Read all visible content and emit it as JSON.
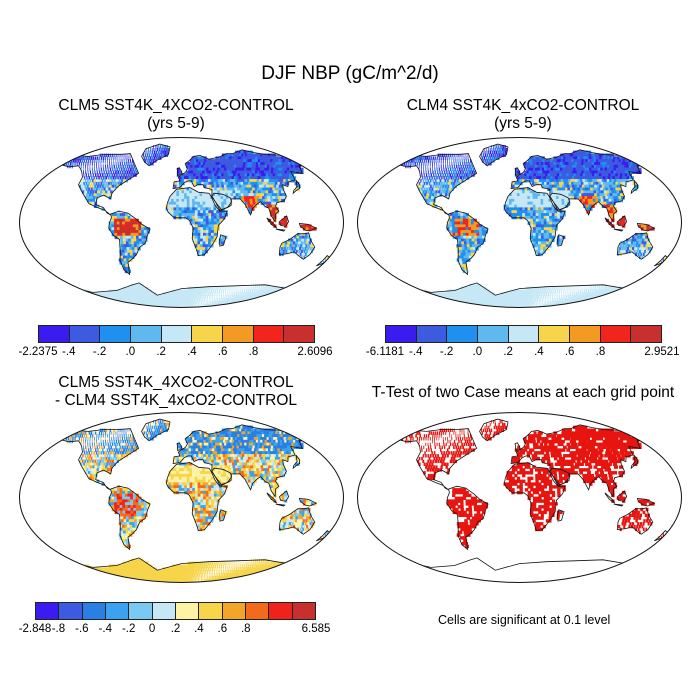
{
  "figure_title": "DJF NBP (gC/m^2/d)",
  "panels": [
    {
      "id": "p1",
      "title_line1": "CLM5 SST4K_4XCO2-CONTROL",
      "title_line2": "(yrs 5-9)"
    },
    {
      "id": "p2",
      "title_line1": "CLM4 SST4K_4xCO2-CONTROL",
      "title_line2": "(yrs 5-9)"
    },
    {
      "id": "p3",
      "title_line1": "CLM5 SST4K_4XCO2-CONTROL",
      "title_line2": "- CLM4 SST4K_4xCO2-CONTROL"
    },
    {
      "id": "p4",
      "title_line1": "T-Test of two Case means at each grid point",
      "title_line2": ""
    }
  ],
  "colorbars": {
    "cb1": {
      "colors": [
        "#3a1cf0",
        "#3c5be0",
        "#1f8ff0",
        "#5fb8ee",
        "#c6e8f6",
        "#f6d54a",
        "#f29a22",
        "#f2251c",
        "#c8302d"
      ],
      "labels": [
        "-2.2375",
        "-.4",
        "-.2",
        ".0",
        ".2",
        ".4",
        ".6",
        ".8",
        "2.6096"
      ]
    },
    "cb2": {
      "colors": [
        "#3a1cf0",
        "#3c5be0",
        "#1f8ff0",
        "#5fb8ee",
        "#c6e8f6",
        "#f6d54a",
        "#f29a22",
        "#f2251c",
        "#c8302d"
      ],
      "labels": [
        "-6.1181",
        "-.4",
        "-.2",
        ".0",
        ".2",
        ".4",
        ".6",
        ".8",
        "2.9521"
      ]
    },
    "cb3": {
      "colors": [
        "#3a1cf0",
        "#3c5be0",
        "#2a7fe4",
        "#3aa2ee",
        "#79c9f2",
        "#c6e8f6",
        "#fdf3a6",
        "#f6d54a",
        "#f3a52a",
        "#f26b1c",
        "#f0221c",
        "#c8302d"
      ],
      "labels": [
        "-2.848",
        "-.8",
        "-.6",
        "-.4",
        "-.2",
        "0",
        ".2",
        ".4",
        ".6",
        ".8",
        "6.585"
      ]
    }
  },
  "significance_note": "Cells are significant at 0.1 level",
  "colors": {
    "land_default": "#5fb8ee",
    "ocean": "#ffffff",
    "significant": "#e8140f"
  }
}
